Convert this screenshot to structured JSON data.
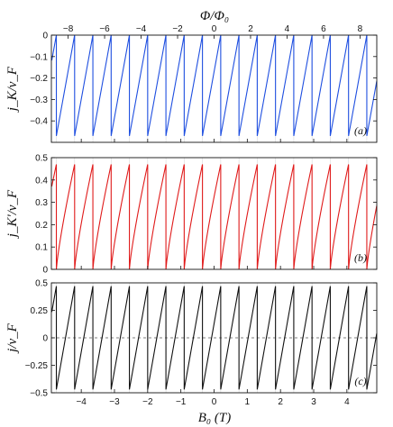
{
  "figure": {
    "top_axis_title": "Φ/Φ₀",
    "bottom_axis_title": "B₀ (T)"
  },
  "chart_data": [
    {
      "type": "line",
      "panel": "(a)",
      "ylabel": "j_K/v_F",
      "ylim": [
        -0.5,
        0
      ],
      "xlim": [
        -4.9,
        4.9
      ],
      "yticks": [
        0,
        -0.1,
        -0.2,
        -0.3,
        -0.4
      ],
      "ytick_labels": [
        "0",
        "−0.1",
        "−0.2",
        "−0.3",
        "−0.4"
      ],
      "top_xticks": [
        -8,
        -6,
        -4,
        -2,
        0,
        2,
        4,
        6,
        8
      ],
      "top_xtick_labels": [
        "−8",
        "−6",
        "−4",
        "−2",
        "0",
        "2",
        "4",
        "6",
        "8"
      ],
      "flux_per_tesla": 1.82,
      "series": [
        {
          "sawtooth": "rising",
          "min": -0.47,
          "max": 0,
          "period_T": 0.55,
          "phase_T": -4.75,
          "color": "#1f4fe0"
        }
      ],
      "grid": "faint vertical lines at each period"
    },
    {
      "type": "line",
      "panel": "(b)",
      "ylabel": "j_K'/v_F",
      "ylim": [
        0,
        0.5
      ],
      "xlim": [
        -4.9,
        4.9
      ],
      "yticks": [
        0.5,
        0.4,
        0.3,
        0.2,
        0.1,
        0
      ],
      "ytick_labels": [
        "0.5",
        "0.4",
        "0.3",
        "0.2",
        "0.1",
        "0"
      ],
      "series": [
        {
          "sawtooth": "rising-concave",
          "min": 0,
          "max": 0.47,
          "period_T": 0.55,
          "phase_T": -4.75,
          "color": "#e01b1b"
        }
      ],
      "grid": "faint vertical lines at each period"
    },
    {
      "type": "line",
      "panel": "(c)",
      "ylabel": "j/v_F",
      "ylim": [
        -0.5,
        0.5
      ],
      "xlim": [
        -4.9,
        4.9
      ],
      "yticks": [
        0.5,
        0.25,
        0,
        -0.25,
        -0.5
      ],
      "ytick_labels": [
        "0.5",
        "0.25",
        "0",
        "−0.25",
        "−0.5"
      ],
      "xticks": [
        -4,
        -3,
        -2,
        -1,
        0,
        1,
        2,
        3,
        4
      ],
      "xtick_labels": [
        "−4",
        "−3",
        "−2",
        "−1",
        "0",
        "1",
        "2",
        "3",
        "4"
      ],
      "series": [
        {
          "sawtooth": "rising",
          "min": -0.47,
          "max": 0.47,
          "period_T": 0.55,
          "phase_T": -4.75,
          "color": "#111111"
        }
      ],
      "reference_line": {
        "y": 0,
        "style": "dashed"
      },
      "grid": "faint vertical lines at each period"
    }
  ]
}
